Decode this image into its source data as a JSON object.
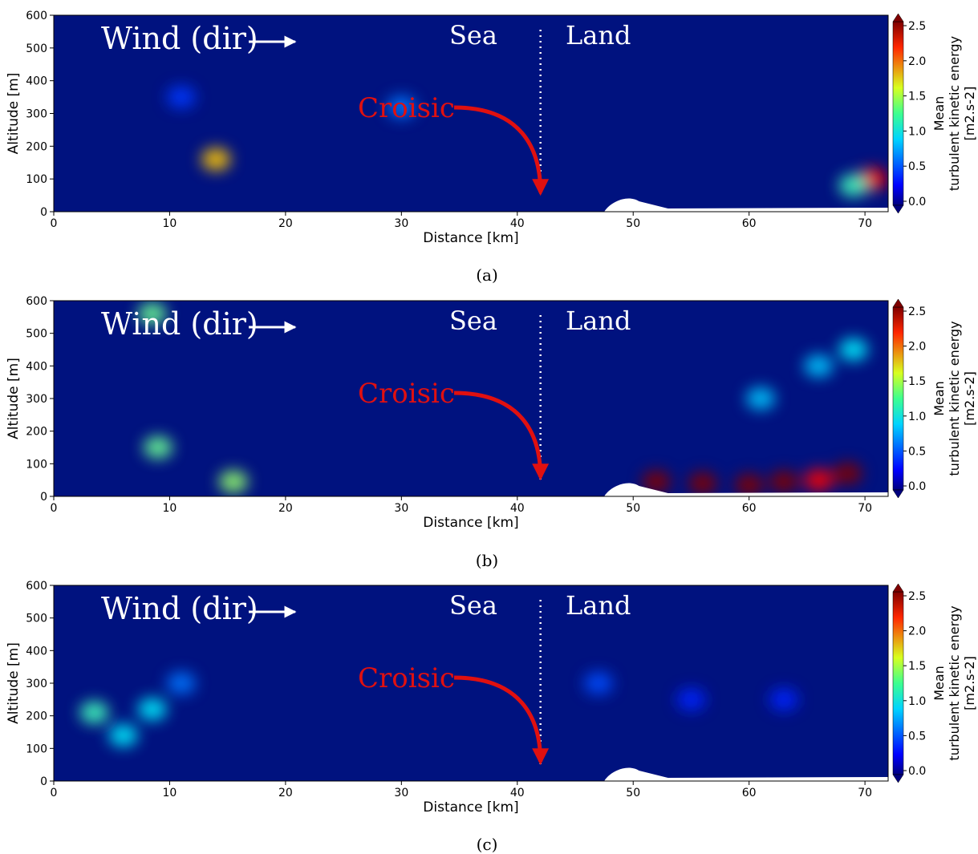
{
  "chart_data": [
    {
      "type": "heatmap",
      "panel_label": "(a)",
      "xlabel": "Distance [km]",
      "ylabel": "Altitude [m]",
      "xlim": [
        0,
        72
      ],
      "ylim": [
        0,
        600
      ],
      "xticks": [
        "0",
        "10",
        "20",
        "30",
        "40",
        "50",
        "60",
        "70"
      ],
      "yticks": [
        "0",
        "100",
        "200",
        "300",
        "400",
        "500",
        "600"
      ],
      "colorbar": {
        "label": [
          "Mean",
          "turbulent kinetic energy",
          "[m2.s-2]"
        ],
        "ticks": [
          "0.0",
          "0.5",
          "1.0",
          "1.5",
          "2.0",
          "2.5"
        ],
        "range": [
          0,
          2.5
        ],
        "colormap": "jet"
      },
      "annotations": {
        "wind": "Wind (dir)",
        "sea": "Sea",
        "land": "Land",
        "site": "Croisic",
        "site_x_km": 42
      },
      "hotspots": [
        {
          "x": 14,
          "y": 160,
          "value": 1.7
        },
        {
          "x": 30,
          "y": 320,
          "value": 0.6
        },
        {
          "x": 70.7,
          "y": 100,
          "value": 2.2
        },
        {
          "x": 69,
          "y": 80,
          "value": 1.1
        },
        {
          "x": 11,
          "y": 350,
          "value": 0.45
        }
      ]
    },
    {
      "type": "heatmap",
      "panel_label": "(b)",
      "xlabel": "Distance [km]",
      "ylabel": "Altitude [m]",
      "xlim": [
        0,
        72
      ],
      "ylim": [
        0,
        600
      ],
      "xticks": [
        "0",
        "10",
        "20",
        "30",
        "40",
        "50",
        "60",
        "70"
      ],
      "yticks": [
        "0",
        "100",
        "200",
        "300",
        "400",
        "500",
        "600"
      ],
      "colorbar": {
        "label": [
          "Mean",
          "turbulent kinetic energy",
          "[m2.s-2]"
        ],
        "ticks": [
          "0.0",
          "0.5",
          "1.0",
          "1.5",
          "2.0",
          "2.5"
        ],
        "range": [
          0,
          2.5
        ],
        "colormap": "jet"
      },
      "annotations": {
        "wind": "Wind (dir)",
        "sea": "Sea",
        "land": "Land",
        "site": "Croisic",
        "site_x_km": 42
      },
      "hotspots": [
        {
          "x": 9,
          "y": 150,
          "value": 1.2
        },
        {
          "x": 8.5,
          "y": 560,
          "value": 1.2
        },
        {
          "x": 15.5,
          "y": 45,
          "value": 1.3
        },
        {
          "x": 52,
          "y": 45,
          "value": 2.6
        },
        {
          "x": 56,
          "y": 40,
          "value": 2.6
        },
        {
          "x": 60,
          "y": 35,
          "value": 2.5
        },
        {
          "x": 63,
          "y": 45,
          "value": 2.5
        },
        {
          "x": 68.5,
          "y": 70,
          "value": 2.7
        },
        {
          "x": 66,
          "y": 50,
          "value": 2.2
        },
        {
          "x": 61,
          "y": 300,
          "value": 0.8
        },
        {
          "x": 66,
          "y": 400,
          "value": 0.8
        },
        {
          "x": 69,
          "y": 450,
          "value": 0.9
        }
      ]
    },
    {
      "type": "heatmap",
      "panel_label": "(c)",
      "xlabel": "Distance [km]",
      "ylabel": "Altitude [m]",
      "xlim": [
        0,
        72
      ],
      "ylim": [
        0,
        600
      ],
      "xticks": [
        "0",
        "10",
        "20",
        "30",
        "40",
        "50",
        "60",
        "70"
      ],
      "yticks": [
        "0",
        "100",
        "200",
        "300",
        "400",
        "500",
        "600"
      ],
      "colorbar": {
        "label": [
          "Mean",
          "turbulent kinetic energy",
          "[m2.s-2]"
        ],
        "ticks": [
          "0.0",
          "0.5",
          "1.0",
          "1.5",
          "2.0",
          "2.5"
        ],
        "range": [
          0,
          2.5
        ],
        "colormap": "jet"
      },
      "annotations": {
        "wind": "Wind (dir)",
        "sea": "Sea",
        "land": "Land",
        "site": "Croisic",
        "site_x_km": 42
      },
      "hotspots": [
        {
          "x": 3.5,
          "y": 210,
          "value": 1.1
        },
        {
          "x": 6,
          "y": 140,
          "value": 0.9
        },
        {
          "x": 8.5,
          "y": 220,
          "value": 0.9
        },
        {
          "x": 11,
          "y": 300,
          "value": 0.6
        },
        {
          "x": 47,
          "y": 300,
          "value": 0.5
        },
        {
          "x": 55,
          "y": 250,
          "value": 0.4
        },
        {
          "x": 63,
          "y": 250,
          "value": 0.4
        }
      ]
    }
  ],
  "colors": {
    "background_field": "#00127f",
    "annotation_text": "#ffffff",
    "site_marker": "#e01010",
    "terrain": "#ffffff"
  }
}
